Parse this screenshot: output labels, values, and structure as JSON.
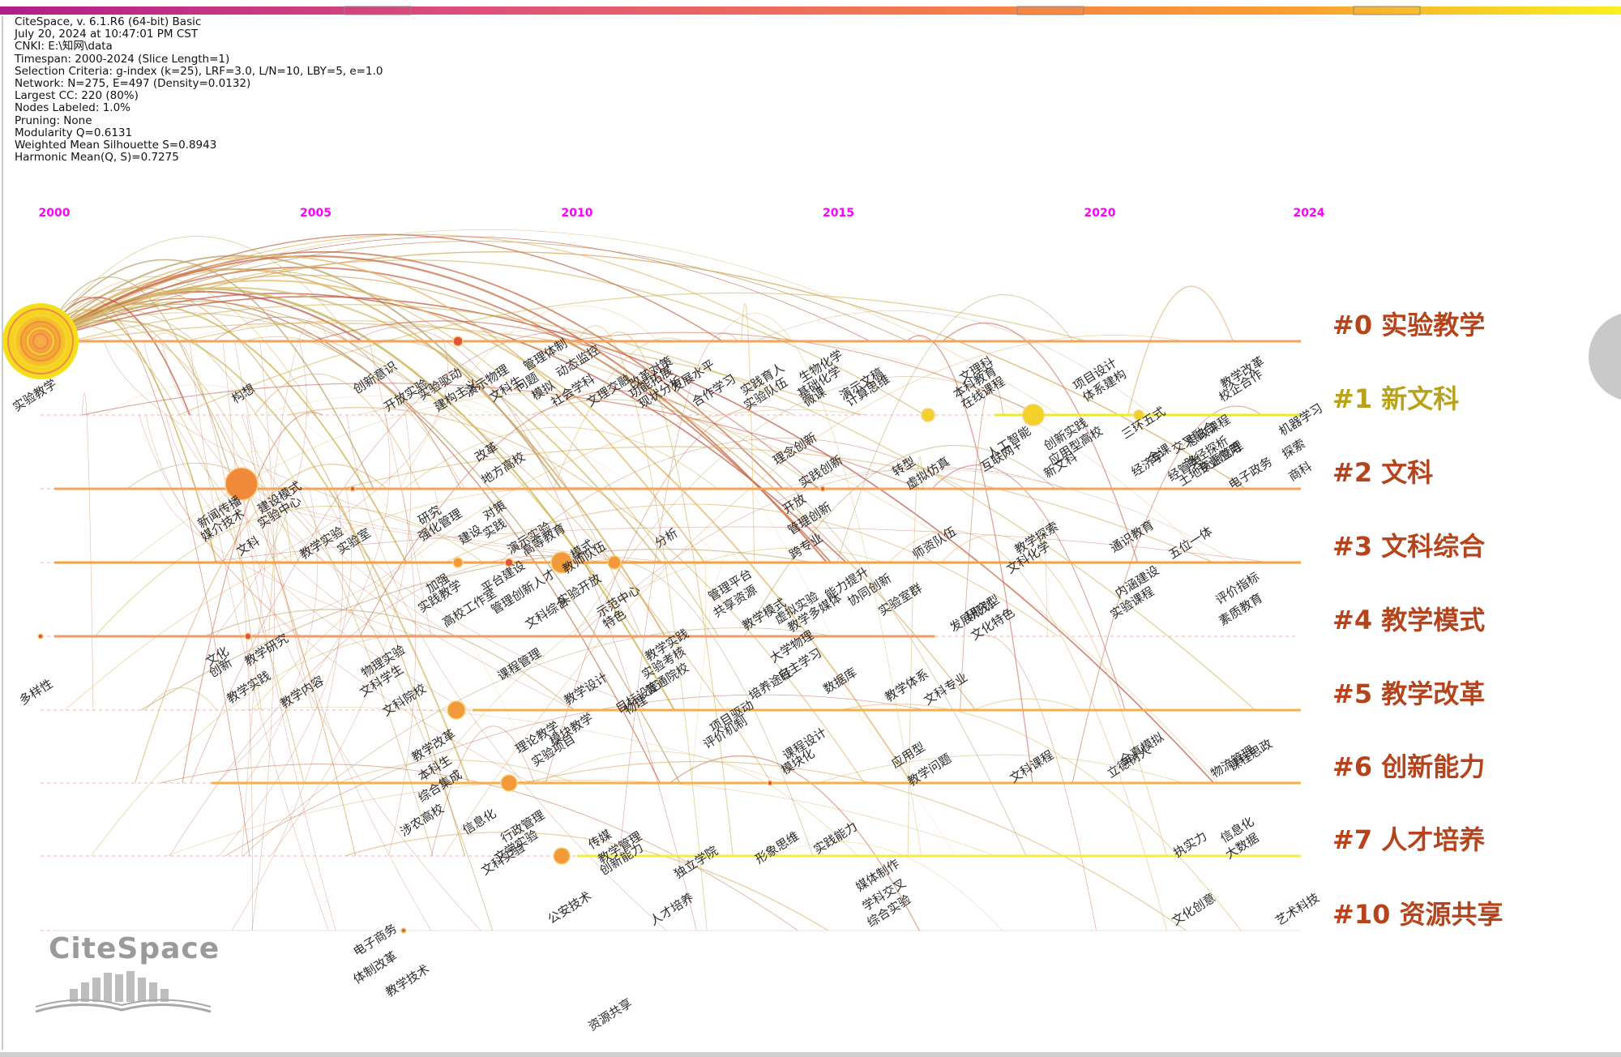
{
  "info": [
    "CiteSpace, v. 6.1.R6 (64-bit) Basic",
    "July 20, 2024 at 10:47:01 PM CST",
    "CNKI: E:\\知网\\data",
    "Timespan: 2000-2024 (Slice Length=1)",
    "Selection Criteria: g-index (k=25), LRF=3.0, L/N=10, LBY=5, e=1.0",
    "Network: N=275, E=497 (Density=0.0132)",
    "Largest CC: 220 (80%)",
    "Nodes Labeled: 1.0%",
    "Pruning: None",
    "Modularity Q=0.6131",
    "Weighted Mean Silhouette S=0.8943",
    "Harmonic Mean(Q, S)=0.7275"
  ],
  "years": [
    "2000",
    "2005",
    "2010",
    "2015",
    "2020",
    "2024"
  ],
  "clusters": [
    {
      "label": "#0 实验教学",
      "color": "#b5441c"
    },
    {
      "label": "#1 新文科",
      "color": "#b8a21a"
    },
    {
      "label": "#2 文科",
      "color": "#b5441c"
    },
    {
      "label": "#3 文科综合",
      "color": "#b5441c"
    },
    {
      "label": "#4 教学模式",
      "color": "#b5441c"
    },
    {
      "label": "#5 教学改革",
      "color": "#b5441c"
    },
    {
      "label": "#6 创新能力",
      "color": "#b5441c"
    },
    {
      "label": "#7 人才培养",
      "color": "#b5441c"
    },
    {
      "label": "#10 资源共享",
      "color": "#b5441c"
    }
  ],
  "keywords": [
    {
      "text": "实验教学"
    },
    {
      "text": "构想"
    },
    {
      "text": "创新意识"
    },
    {
      "text": "开放实验"
    },
    {
      "text": "实验驱动"
    },
    {
      "text": "建构主义"
    },
    {
      "text": "演示物理"
    },
    {
      "text": "文科生"
    },
    {
      "text": "问题"
    },
    {
      "text": "管理体制"
    },
    {
      "text": "动态监控"
    },
    {
      "text": "模拟"
    },
    {
      "text": "社会学科"
    },
    {
      "text": "文理交融"
    },
    {
      "text": "改革对策"
    },
    {
      "text": "功能拓展"
    },
    {
      "text": "现状分析"
    },
    {
      "text": "发展水平"
    },
    {
      "text": "合作学习"
    },
    {
      "text": "实践育人"
    },
    {
      "text": "实验队伍"
    },
    {
      "text": "生物化学"
    },
    {
      "text": "基础化学"
    },
    {
      "text": "微课"
    },
    {
      "text": "演示文稿"
    },
    {
      "text": "计算思维"
    },
    {
      "text": "文理科"
    },
    {
      "text": "本科教育"
    },
    {
      "text": "在线课程"
    },
    {
      "text": "项目设计"
    },
    {
      "text": "体系建构"
    },
    {
      "text": "教学改革"
    },
    {
      "text": "校企合作"
    },
    {
      "text": "新闻传播"
    },
    {
      "text": "媒介技术"
    },
    {
      "text": "建设模式"
    },
    {
      "text": "实验中心"
    },
    {
      "text": "文科"
    },
    {
      "text": "教学实验"
    },
    {
      "text": "实验室"
    },
    {
      "text": "改革"
    },
    {
      "text": "地方高校"
    },
    {
      "text": "理念创新"
    },
    {
      "text": "实践创新"
    },
    {
      "text": "转型"
    },
    {
      "text": "虚拟仿真"
    },
    {
      "text": "人工智能"
    },
    {
      "text": "互联网+"
    },
    {
      "text": "创新实践"
    },
    {
      "text": "新文科"
    },
    {
      "text": "应用型高校"
    },
    {
      "text": "三环五式"
    },
    {
      "text": "经济学"
    },
    {
      "text": "金课"
    },
    {
      "text": "经管类"
    },
    {
      "text": "交叉融合"
    },
    {
      "text": "思政课程"
    },
    {
      "text": "路径探析"
    },
    {
      "text": "土地资源管理"
    },
    {
      "text": "专业应用"
    },
    {
      "text": "电子政务"
    },
    {
      "text": "机器学习"
    },
    {
      "text": "探索"
    },
    {
      "text": "商科"
    },
    {
      "text": "研究"
    },
    {
      "text": "强化管理"
    },
    {
      "text": "对策"
    },
    {
      "text": "实践"
    },
    {
      "text": "建设"
    },
    {
      "text": "演示实验"
    },
    {
      "text": "高等教育"
    },
    {
      "text": "模式"
    },
    {
      "text": "教师队伍"
    },
    {
      "text": "分析"
    },
    {
      "text": "开放"
    },
    {
      "text": "管理创新"
    },
    {
      "text": "跨专业"
    },
    {
      "text": "师资队伍"
    },
    {
      "text": "教学探索"
    },
    {
      "text": "文科化学"
    },
    {
      "text": "通识教育"
    },
    {
      "text": "五位一体"
    },
    {
      "text": "加强"
    },
    {
      "text": "实践教学"
    },
    {
      "text": "高校工作室"
    },
    {
      "text": "平台建设"
    },
    {
      "text": "管理创新人才"
    },
    {
      "text": "文科综合"
    },
    {
      "text": "实验开放"
    },
    {
      "text": "示范中心"
    },
    {
      "text": "特色"
    },
    {
      "text": "管理平台"
    },
    {
      "text": "共享资源"
    },
    {
      "text": "教学模式"
    },
    {
      "text": "虚拟实验"
    },
    {
      "text": "教学多媒体"
    },
    {
      "text": "能力提升"
    },
    {
      "text": "协同创新"
    },
    {
      "text": "实验室群"
    },
    {
      "text": "发展规划"
    },
    {
      "text": "研究型"
    },
    {
      "text": "文化特色"
    },
    {
      "text": "内涵建设"
    },
    {
      "text": "实验课程"
    },
    {
      "text": "评价指标"
    },
    {
      "text": "素质教育"
    },
    {
      "text": "多样性"
    },
    {
      "text": "文化"
    },
    {
      "text": "创新"
    },
    {
      "text": "教学研究"
    },
    {
      "text": "教学实践"
    },
    {
      "text": "教学内容"
    },
    {
      "text": "物理实验"
    },
    {
      "text": "文科学生"
    },
    {
      "text": "文科院校"
    },
    {
      "text": "教学实践"
    },
    {
      "text": "实验考核"
    },
    {
      "text": "普通院校"
    },
    {
      "text": "物理"
    },
    {
      "text": "课程管理"
    },
    {
      "text": "教学设计"
    },
    {
      "text": "目标设定"
    },
    {
      "text": "大学物理"
    },
    {
      "text": "自主学习"
    },
    {
      "text": "培养途径"
    },
    {
      "text": "数据库"
    },
    {
      "text": "教学体系"
    },
    {
      "text": "文科专业"
    },
    {
      "text": "教学改革"
    },
    {
      "text": "本科生"
    },
    {
      "text": "综合集成"
    },
    {
      "text": "理论教学"
    },
    {
      "text": "模块教学"
    },
    {
      "text": "实验项目"
    },
    {
      "text": "项目驱动"
    },
    {
      "text": "评价机制"
    },
    {
      "text": "课程设计"
    },
    {
      "text": "模块化"
    },
    {
      "text": "应用型"
    },
    {
      "text": "教学问题"
    },
    {
      "text": "文科课程"
    },
    {
      "text": "全真模拟"
    },
    {
      "text": "立德树人"
    },
    {
      "text": "课程思政"
    },
    {
      "text": "物流管理"
    },
    {
      "text": "涉农高校"
    },
    {
      "text": "信息化"
    },
    {
      "text": "行政管理"
    },
    {
      "text": "文学实验"
    },
    {
      "text": "文科实验"
    },
    {
      "text": "传媒"
    },
    {
      "text": "教学管理"
    },
    {
      "text": "创新能力"
    },
    {
      "text": "独立学院"
    },
    {
      "text": "形象思维"
    },
    {
      "text": "实践能力"
    },
    {
      "text": "执实力"
    },
    {
      "text": "信息化"
    },
    {
      "text": "大数据"
    },
    {
      "text": "公安技术"
    },
    {
      "text": "人才培养"
    },
    {
      "text": "媒体制作"
    },
    {
      "text": "学科交叉"
    },
    {
      "text": "综合实验"
    },
    {
      "text": "文化创意"
    },
    {
      "text": "艺术科技"
    },
    {
      "text": "电子商务"
    },
    {
      "text": "体制改革"
    },
    {
      "text": "教学技术"
    },
    {
      "text": "资源共享"
    }
  ],
  "logo": {
    "name": "CiteSpace"
  }
}
